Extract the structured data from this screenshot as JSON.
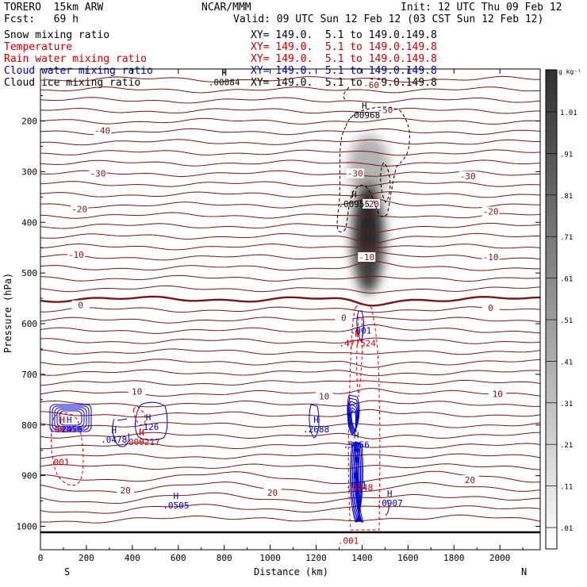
{
  "header": {
    "model": "TORERO  15km ARW",
    "center": "NCAR/MMM",
    "init": "Init: 12 UTC Thu 09 Feb 12",
    "fcst": "Fcst:   69 h",
    "valid": "Valid: 09 UTC Sun 12 Feb 12 (03 CST Sun 12 Feb 12)"
  },
  "legend": [
    {
      "name": "Snow mixing ratio",
      "color": "#000000",
      "xy": "XY= 149.0.  5.1 to 149.0.149.8"
    },
    {
      "name": "Temperature",
      "color": "#cc0000",
      "xy": "XY= 149.0.  5.1 to 149.0.149.8"
    },
    {
      "name": "Rain water mixing ratio",
      "color": "#cc0000",
      "xy": "XY= 149.0.  5.1 to 149.0.149.8"
    },
    {
      "name": "Cloud water mixing ratio",
      "color": "#0000cc",
      "xy": "XY= 149.0.  5.1 to 149.0.149.8"
    },
    {
      "name": "Cloud ice mixing ratio",
      "color": "#000000",
      "xy": "XY= 149.0.  5.1 to 149.0.149.8"
    }
  ],
  "colors": {
    "temperature": "#7a1515",
    "rain": "#dd0000",
    "cloud_water": "#0000cc",
    "cloud_ice": "#000000"
  },
  "chart_data": {
    "type": "contour",
    "xlabel": "Distance (km)",
    "ylabel": "Pressure (hPa)",
    "xlim": [
      0,
      2170
    ],
    "ylim": [
      1050,
      100
    ],
    "x_ticks": [
      0,
      200,
      400,
      600,
      800,
      1000,
      1200,
      1400,
      1600,
      1800,
      2000
    ],
    "y_ticks": [
      200,
      300,
      400,
      500,
      600,
      700,
      800,
      900,
      1000
    ],
    "x_end_labels": {
      "left": "S",
      "right": "N"
    },
    "colorbar": {
      "units": "g kg⁻¹",
      "levels": [
        "1.01",
        ".91",
        ".81",
        ".71",
        ".61",
        ".51",
        ".41",
        ".31",
        ".21",
        ".11",
        ".01"
      ]
    },
    "temperature_labels": [
      {
        "x": 270,
        "p": 220,
        "text": "-40"
      },
      {
        "x": 1500,
        "p": 180,
        "text": "-50"
      },
      {
        "x": 1440,
        "p": 130,
        "text": "-60"
      },
      {
        "x": 250,
        "p": 305,
        "text": "-30"
      },
      {
        "x": 1370,
        "p": 305,
        "text": "-30"
      },
      {
        "x": 1860,
        "p": 310,
        "text": "-30"
      },
      {
        "x": 170,
        "p": 375,
        "text": "-20"
      },
      {
        "x": 1440,
        "p": 365,
        "text": "-20"
      },
      {
        "x": 1960,
        "p": 380,
        "text": "-20"
      },
      {
        "x": 155,
        "p": 465,
        "text": "-10"
      },
      {
        "x": 1420,
        "p": 470,
        "text": "-10"
      },
      {
        "x": 1960,
        "p": 470,
        "text": "-10"
      },
      {
        "x": 175,
        "p": 565,
        "text": "0"
      },
      {
        "x": 1320,
        "p": 590,
        "text": "0"
      },
      {
        "x": 1960,
        "p": 570,
        "text": "0"
      },
      {
        "x": 420,
        "p": 735,
        "text": "10"
      },
      {
        "x": 1235,
        "p": 745,
        "text": "10"
      },
      {
        "x": 1990,
        "p": 740,
        "text": "10"
      },
      {
        "x": 370,
        "p": 930,
        "text": "20"
      },
      {
        "x": 1010,
        "p": 935,
        "text": "20"
      },
      {
        "x": 1870,
        "p": 910,
        "text": "20"
      }
    ],
    "max_markers": [
      {
        "x": 800,
        "p": 125,
        "h": "H",
        "value": ".00084",
        "color": "#000000"
      },
      {
        "x": 1410,
        "p": 190,
        "h": "H",
        "value": ".00968",
        "color": "#000000"
      },
      {
        "x": 1365,
        "p": 365,
        "h": "H",
        "value": ".00955",
        "color": "#000000"
      },
      {
        "x": 1380,
        "p": 640,
        "h": "H",
        "value": ".477524",
        "color": "#cc0000"
      },
      {
        "x": 1395,
        "p": 615,
        "h": "",
        "value": ".001",
        "color": "#0000cc"
      },
      {
        "x": 95,
        "p": 810,
        "h": "H",
        "value": ".0816",
        "color": "#cc0000"
      },
      {
        "x": 125,
        "p": 810,
        "h": "H",
        "value": ".2450",
        "color": "#0000cc"
      },
      {
        "x": 320,
        "p": 830,
        "h": "H",
        "value": ".0478",
        "color": "#0000cc"
      },
      {
        "x": 470,
        "p": 805,
        "h": "H",
        "value": ".126",
        "color": "#0000cc"
      },
      {
        "x": 440,
        "p": 835,
        "h": "H",
        "value": ".000217",
        "color": "#cc0000"
      },
      {
        "x": 1200,
        "p": 810,
        "h": "H",
        "value": ".2688",
        "color": "#0000cc"
      },
      {
        "x": 1375,
        "p": 840,
        "h": "H",
        "value": ".5256",
        "color": "#0000cc"
      },
      {
        "x": 80,
        "p": 875,
        "h": "",
        "value": ".001",
        "color": "#cc0000"
      },
      {
        "x": 1375,
        "p": 920,
        "h": "H",
        "value": ".001",
        "color": "#0000cc"
      },
      {
        "x": 1390,
        "p": 925,
        "h": "",
        "value": ".9448",
        "color": "#cc0000"
      },
      {
        "x": 590,
        "p": 960,
        "h": "H",
        "value": ".0505",
        "color": "#0000cc"
      },
      {
        "x": 1520,
        "p": 955,
        "h": "H",
        "value": ".0907",
        "color": "#0000cc"
      },
      {
        "x": 1340,
        "p": 1030,
        "h": "",
        "value": ".001",
        "color": "#cc0000"
      }
    ]
  }
}
